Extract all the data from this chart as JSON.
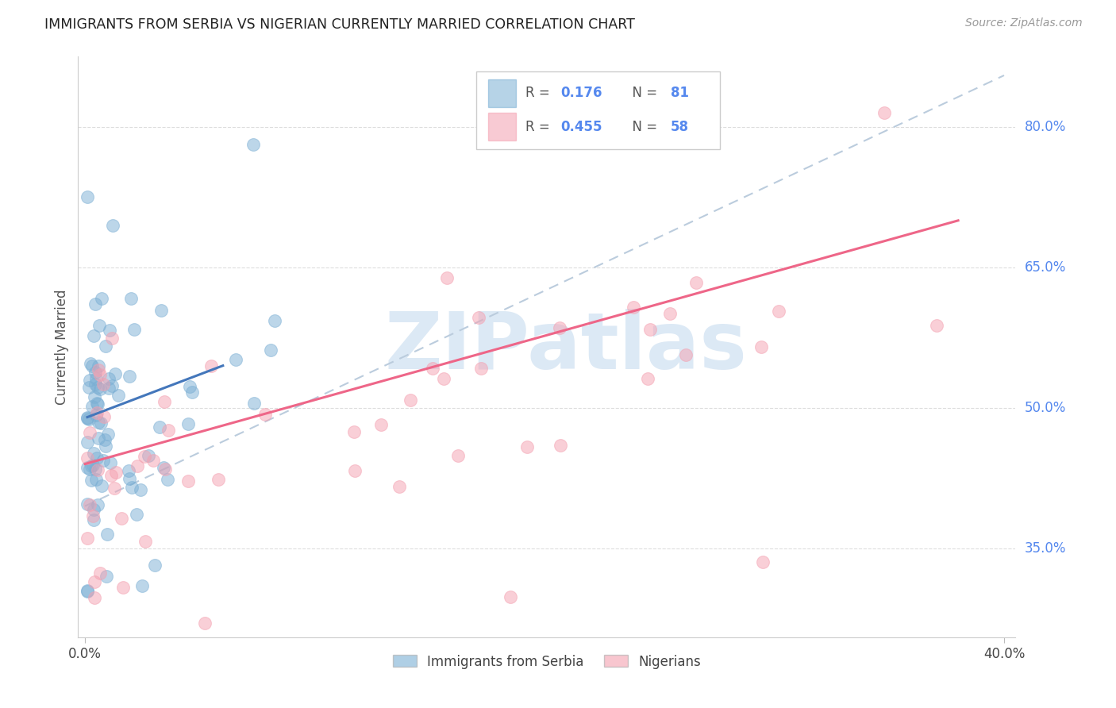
{
  "title": "IMMIGRANTS FROM SERBIA VS NIGERIAN CURRENTLY MARRIED CORRELATION CHART",
  "source": "Source: ZipAtlas.com",
  "ylabel": "Currently Married",
  "yticks_labels": [
    "80.0%",
    "65.0%",
    "50.0%",
    "35.0%"
  ],
  "ytick_vals": [
    0.8,
    0.65,
    0.5,
    0.35
  ],
  "xlim": [
    -0.003,
    0.405
  ],
  "ylim": [
    0.255,
    0.875
  ],
  "serbia_R": 0.176,
  "serbia_N": 81,
  "nigeria_R": 0.455,
  "nigeria_N": 58,
  "serbia_color": "#7BAFD4",
  "nigeria_color": "#F4A0B0",
  "serbia_line_color": "#4477BB",
  "nigeria_line_color": "#EE6688",
  "dashed_line_color": "#BBCCDD",
  "watermark_color": "#DCE9F5",
  "grid_color": "#DDDDDD",
  "spine_color": "#CCCCCC",
  "ytick_color": "#5588EE",
  "title_color": "#222222",
  "source_color": "#999999",
  "serbia_line_x": [
    0.001,
    0.06
  ],
  "serbia_line_y": [
    0.49,
    0.545
  ],
  "nigeria_line_x": [
    0.0,
    0.38
  ],
  "nigeria_line_y": [
    0.44,
    0.7
  ],
  "dash_line_x": [
    0.0,
    0.4
  ],
  "dash_line_y": [
    0.395,
    0.855
  ]
}
